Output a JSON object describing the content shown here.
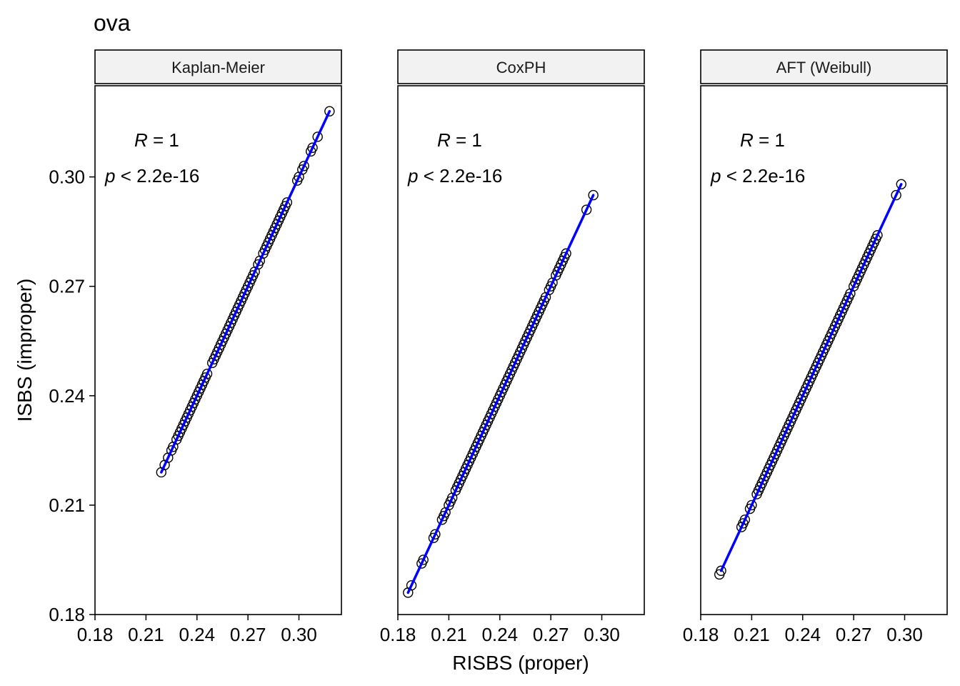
{
  "title": "ova",
  "xlabel": "RISBS (proper)",
  "ylabel": "ISBS (improper)",
  "colors": {
    "fit_line": "#0000ff",
    "point_stroke": "#000000",
    "strip_fill": "#f2f2f2",
    "panel_border": "#000000"
  },
  "chart_data": [
    {
      "type": "scatter",
      "panel": "Kaplan-Meier",
      "xlim": [
        0.18,
        0.325
      ],
      "ylim": [
        0.18,
        0.325
      ],
      "xticks": [
        "0.18",
        "0.21",
        "0.24",
        "0.27",
        "0.30"
      ],
      "yticks": [
        "0.18",
        "0.21",
        "0.24",
        "0.27",
        "0.30"
      ],
      "annotation": {
        "r_var": "R",
        "r_rest": " = 1",
        "p_var": "p",
        "p_rest": " < 2.2e-16"
      },
      "fit_line": {
        "x": [
          0.219,
          0.318
        ],
        "y": [
          0.219,
          0.318
        ]
      },
      "points": {
        "x": [
          0.219,
          0.221,
          0.223,
          0.225,
          0.226,
          0.228,
          0.229,
          0.23,
          0.231,
          0.232,
          0.233,
          0.234,
          0.235,
          0.236,
          0.237,
          0.238,
          0.239,
          0.24,
          0.241,
          0.242,
          0.243,
          0.244,
          0.245,
          0.246,
          0.249,
          0.25,
          0.251,
          0.252,
          0.253,
          0.254,
          0.255,
          0.256,
          0.257,
          0.258,
          0.259,
          0.26,
          0.261,
          0.262,
          0.263,
          0.264,
          0.265,
          0.266,
          0.267,
          0.268,
          0.269,
          0.27,
          0.271,
          0.272,
          0.273,
          0.274,
          0.276,
          0.277,
          0.279,
          0.28,
          0.281,
          0.282,
          0.283,
          0.284,
          0.285,
          0.286,
          0.287,
          0.288,
          0.289,
          0.29,
          0.291,
          0.292,
          0.293,
          0.299,
          0.3,
          0.302,
          0.303,
          0.307,
          0.308,
          0.311,
          0.318
        ],
        "y": [
          0.219,
          0.221,
          0.223,
          0.225,
          0.226,
          0.228,
          0.229,
          0.23,
          0.231,
          0.232,
          0.233,
          0.234,
          0.235,
          0.236,
          0.237,
          0.238,
          0.239,
          0.24,
          0.241,
          0.242,
          0.243,
          0.244,
          0.245,
          0.246,
          0.249,
          0.25,
          0.251,
          0.252,
          0.253,
          0.254,
          0.255,
          0.256,
          0.257,
          0.258,
          0.259,
          0.26,
          0.261,
          0.262,
          0.263,
          0.264,
          0.265,
          0.266,
          0.267,
          0.268,
          0.269,
          0.27,
          0.271,
          0.272,
          0.273,
          0.274,
          0.276,
          0.277,
          0.279,
          0.28,
          0.281,
          0.282,
          0.283,
          0.284,
          0.285,
          0.286,
          0.287,
          0.288,
          0.289,
          0.29,
          0.291,
          0.292,
          0.293,
          0.299,
          0.3,
          0.302,
          0.303,
          0.307,
          0.308,
          0.311,
          0.318
        ]
      }
    },
    {
      "type": "scatter",
      "panel": "CoxPH",
      "xlim": [
        0.18,
        0.325
      ],
      "ylim": [
        0.18,
        0.325
      ],
      "xticks": [
        "0.18",
        "0.21",
        "0.24",
        "0.27",
        "0.30"
      ],
      "yticks": [],
      "annotation": {
        "r_var": "R",
        "r_rest": " = 1",
        "p_var": "p",
        "p_rest": " < 2.2e-16"
      },
      "fit_line": {
        "x": [
          0.186,
          0.295
        ],
        "y": [
          0.186,
          0.295
        ]
      },
      "points": {
        "x": [
          0.186,
          0.188,
          0.194,
          0.195,
          0.201,
          0.202,
          0.206,
          0.207,
          0.208,
          0.21,
          0.211,
          0.212,
          0.214,
          0.215,
          0.216,
          0.217,
          0.218,
          0.219,
          0.22,
          0.221,
          0.222,
          0.223,
          0.224,
          0.225,
          0.226,
          0.227,
          0.228,
          0.229,
          0.23,
          0.231,
          0.232,
          0.233,
          0.234,
          0.235,
          0.236,
          0.237,
          0.238,
          0.239,
          0.24,
          0.241,
          0.242,
          0.243,
          0.244,
          0.245,
          0.246,
          0.247,
          0.248,
          0.249,
          0.25,
          0.251,
          0.252,
          0.253,
          0.254,
          0.255,
          0.256,
          0.257,
          0.258,
          0.259,
          0.26,
          0.261,
          0.262,
          0.263,
          0.264,
          0.265,
          0.266,
          0.267,
          0.269,
          0.27,
          0.271,
          0.273,
          0.274,
          0.275,
          0.276,
          0.277,
          0.278,
          0.279,
          0.291,
          0.295
        ],
        "y": [
          0.186,
          0.188,
          0.194,
          0.195,
          0.201,
          0.202,
          0.206,
          0.207,
          0.208,
          0.21,
          0.211,
          0.212,
          0.214,
          0.215,
          0.216,
          0.217,
          0.218,
          0.219,
          0.22,
          0.221,
          0.222,
          0.223,
          0.224,
          0.225,
          0.226,
          0.227,
          0.228,
          0.229,
          0.23,
          0.231,
          0.232,
          0.233,
          0.234,
          0.235,
          0.236,
          0.237,
          0.238,
          0.239,
          0.24,
          0.241,
          0.242,
          0.243,
          0.244,
          0.245,
          0.246,
          0.247,
          0.248,
          0.249,
          0.25,
          0.251,
          0.252,
          0.253,
          0.254,
          0.255,
          0.256,
          0.257,
          0.258,
          0.259,
          0.26,
          0.261,
          0.262,
          0.263,
          0.264,
          0.265,
          0.266,
          0.267,
          0.269,
          0.27,
          0.271,
          0.273,
          0.274,
          0.275,
          0.276,
          0.277,
          0.278,
          0.279,
          0.291,
          0.295
        ]
      }
    },
    {
      "type": "scatter",
      "panel": "AFT (Weibull)",
      "xlim": [
        0.18,
        0.325
      ],
      "ylim": [
        0.18,
        0.325
      ],
      "xticks": [
        "0.18",
        "0.21",
        "0.24",
        "0.27",
        "0.30"
      ],
      "yticks": [],
      "annotation": {
        "r_var": "R",
        "r_rest": " = 1",
        "p_var": "p",
        "p_rest": " < 2.2e-16"
      },
      "fit_line": {
        "x": [
          0.192,
          0.298
        ],
        "y": [
          0.192,
          0.298
        ]
      },
      "points": {
        "x": [
          0.191,
          0.192,
          0.204,
          0.205,
          0.206,
          0.209,
          0.21,
          0.213,
          0.214,
          0.215,
          0.216,
          0.217,
          0.218,
          0.219,
          0.22,
          0.221,
          0.222,
          0.223,
          0.224,
          0.225,
          0.226,
          0.227,
          0.228,
          0.229,
          0.23,
          0.231,
          0.232,
          0.233,
          0.234,
          0.235,
          0.236,
          0.237,
          0.238,
          0.239,
          0.24,
          0.241,
          0.242,
          0.243,
          0.244,
          0.245,
          0.246,
          0.247,
          0.248,
          0.249,
          0.25,
          0.251,
          0.252,
          0.253,
          0.254,
          0.255,
          0.256,
          0.257,
          0.258,
          0.259,
          0.26,
          0.261,
          0.262,
          0.263,
          0.264,
          0.265,
          0.266,
          0.267,
          0.268,
          0.27,
          0.271,
          0.272,
          0.273,
          0.274,
          0.275,
          0.276,
          0.277,
          0.278,
          0.279,
          0.28,
          0.281,
          0.282,
          0.283,
          0.284,
          0.295,
          0.298
        ],
        "y": [
          0.191,
          0.192,
          0.204,
          0.205,
          0.206,
          0.209,
          0.21,
          0.213,
          0.214,
          0.215,
          0.216,
          0.217,
          0.218,
          0.219,
          0.22,
          0.221,
          0.222,
          0.223,
          0.224,
          0.225,
          0.226,
          0.227,
          0.228,
          0.229,
          0.23,
          0.231,
          0.232,
          0.233,
          0.234,
          0.235,
          0.236,
          0.237,
          0.238,
          0.239,
          0.24,
          0.241,
          0.242,
          0.243,
          0.244,
          0.245,
          0.246,
          0.247,
          0.248,
          0.249,
          0.25,
          0.251,
          0.252,
          0.253,
          0.254,
          0.255,
          0.256,
          0.257,
          0.258,
          0.259,
          0.26,
          0.261,
          0.262,
          0.263,
          0.264,
          0.265,
          0.266,
          0.267,
          0.268,
          0.27,
          0.271,
          0.272,
          0.273,
          0.274,
          0.275,
          0.276,
          0.277,
          0.278,
          0.279,
          0.28,
          0.281,
          0.282,
          0.283,
          0.284,
          0.295,
          0.298
        ]
      }
    }
  ]
}
